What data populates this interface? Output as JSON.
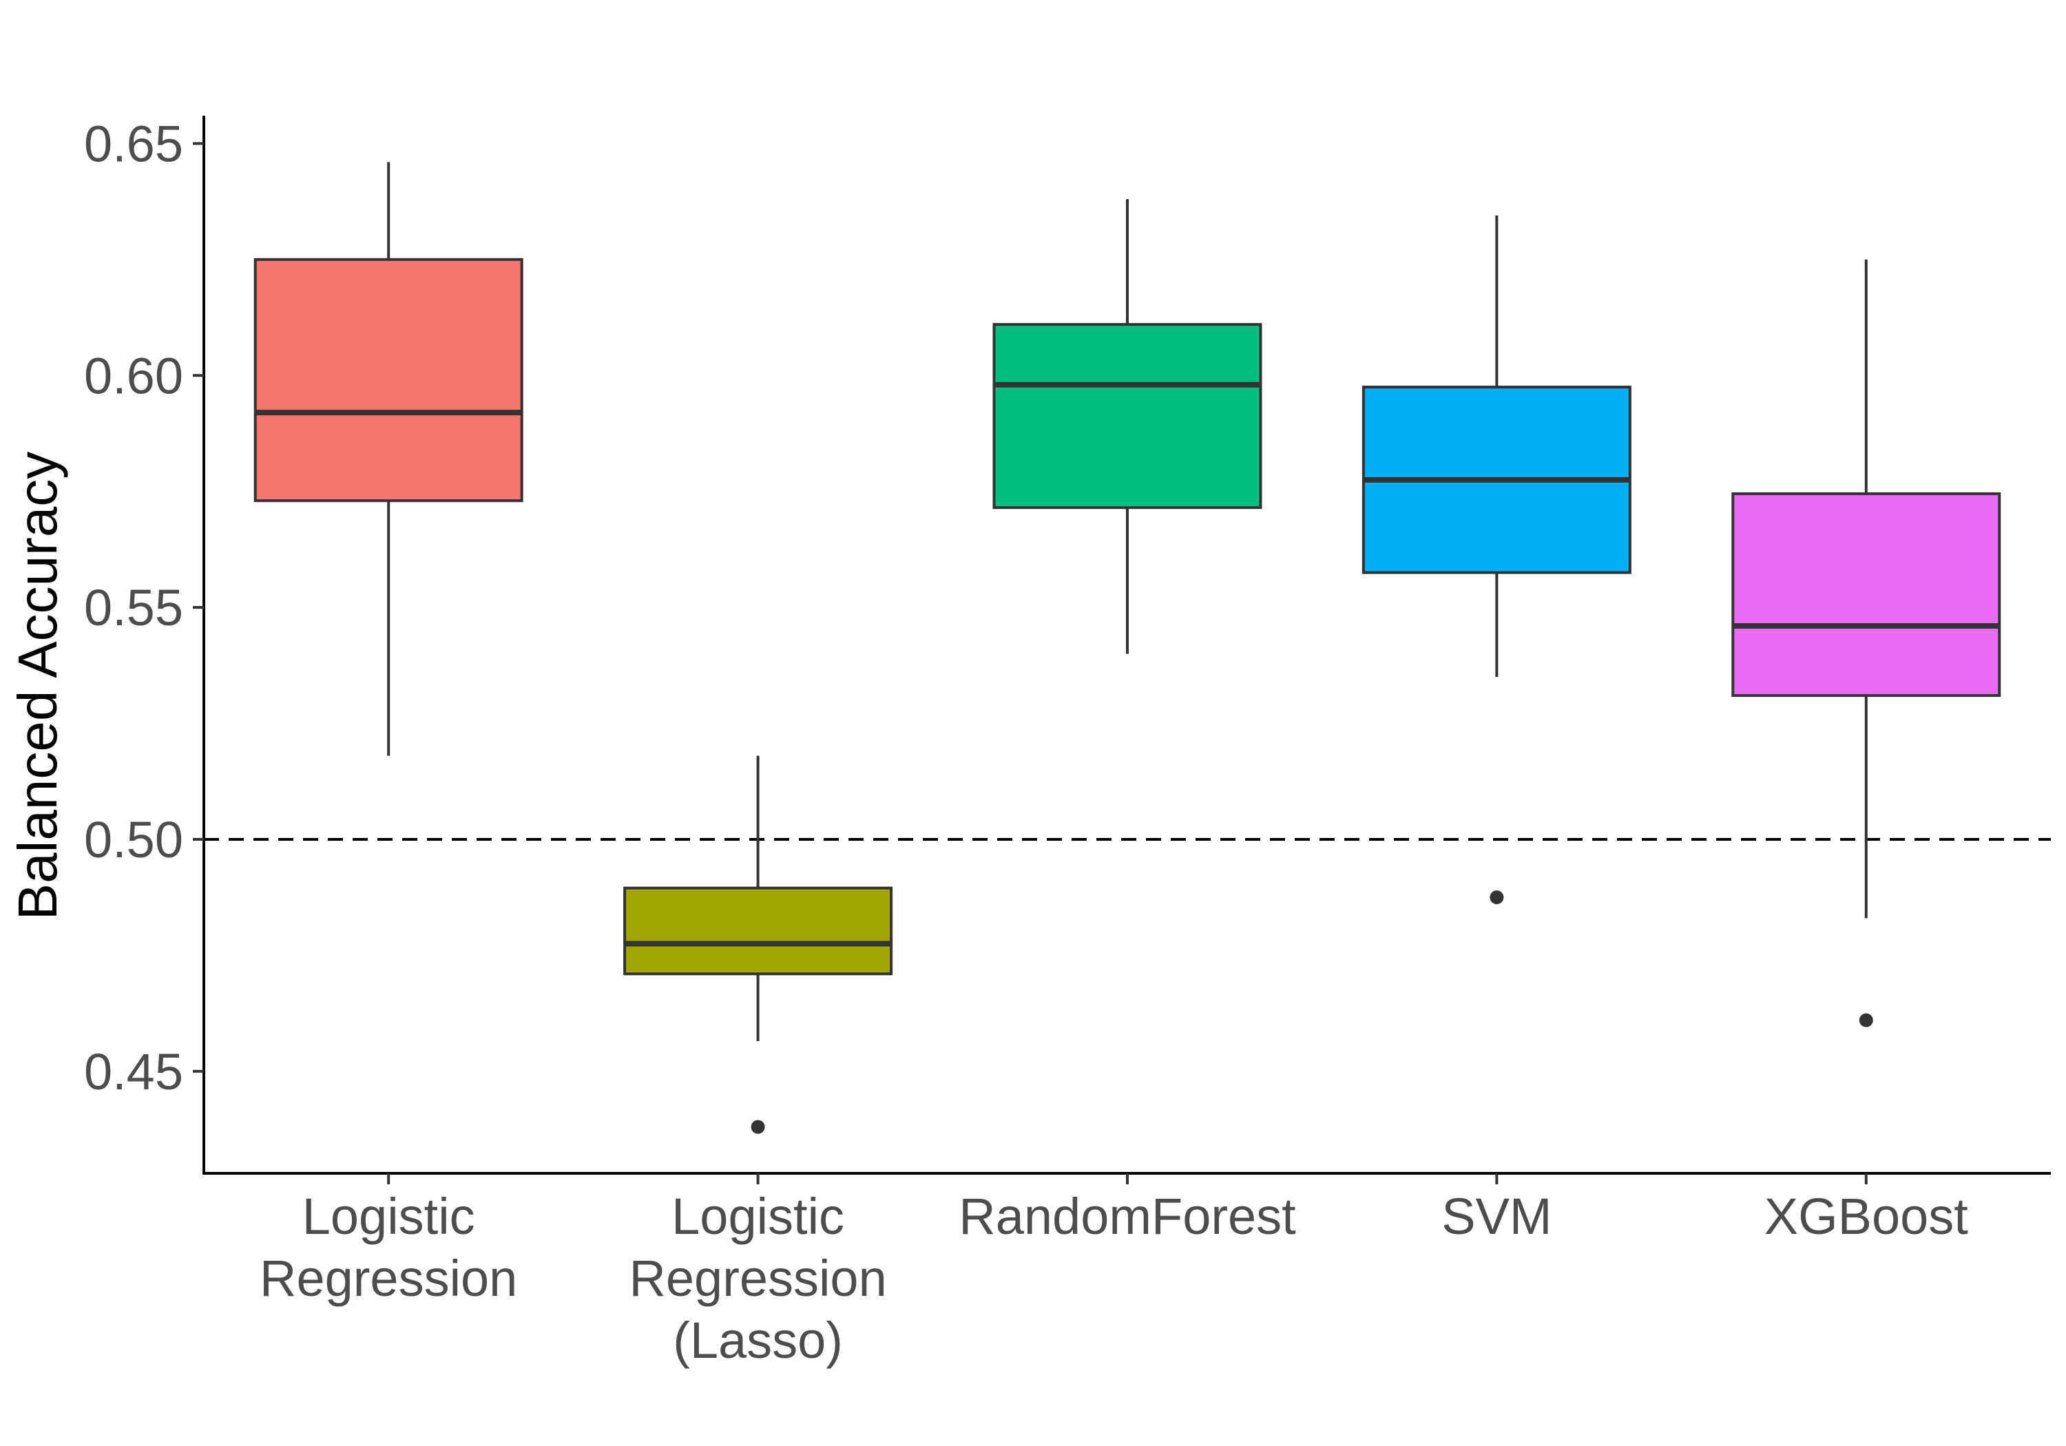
{
  "chart_data": {
    "type": "boxplot",
    "ylabel": "Balanced Accuracy",
    "xlabel": "",
    "ylim": [
      0.428,
      0.656
    ],
    "yticks": [
      0.45,
      0.5,
      0.55,
      0.6,
      0.65
    ],
    "ytick_labels": [
      "0.45",
      "0.50",
      "0.55",
      "0.60",
      "0.65"
    ],
    "reference_line": {
      "y": 0.5,
      "style": "dashed"
    },
    "legend": "none",
    "categories": [
      {
        "label_lines": [
          "Logistic",
          "Regression"
        ],
        "color": "#F8766D",
        "whisker_low": 0.518,
        "q1": 0.573,
        "median": 0.592,
        "q3": 0.625,
        "whisker_high": 0.646,
        "outliers": []
      },
      {
        "label_lines": [
          "Logistic",
          "Regression",
          "(Lasso)"
        ],
        "color": "#A3A500",
        "whisker_low": 0.4565,
        "q1": 0.471,
        "median": 0.4775,
        "q3": 0.4895,
        "whisker_high": 0.518,
        "outliers": [
          0.438
        ]
      },
      {
        "label_lines": [
          "RandomForest"
        ],
        "color": "#00BF7D",
        "whisker_low": 0.54,
        "q1": 0.5715,
        "median": 0.598,
        "q3": 0.611,
        "whisker_high": 0.638,
        "outliers": []
      },
      {
        "label_lines": [
          "SVM"
        ],
        "color": "#00B0F6",
        "whisker_low": 0.535,
        "q1": 0.5575,
        "median": 0.5775,
        "q3": 0.5975,
        "whisker_high": 0.6345,
        "outliers": [
          0.4875
        ]
      },
      {
        "label_lines": [
          "XGBoost"
        ],
        "color": "#E76BF3",
        "whisker_low": 0.483,
        "q1": 0.531,
        "median": 0.546,
        "q3": 0.5745,
        "whisker_high": 0.625,
        "outliers": [
          0.461
        ]
      }
    ]
  }
}
